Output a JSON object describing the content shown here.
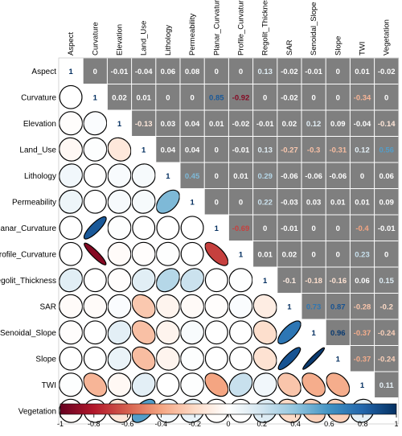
{
  "chart_data": {
    "type": "heatmap",
    "variables": [
      "Aspect",
      "Curvature",
      "Elevation",
      "Land_Use",
      "Lithology",
      "Permeability",
      "Planar_Curvature",
      "Profile_Curvature",
      "Regolit_Thickness",
      "SAR",
      "Senoidal_Slope",
      "Slope",
      "TWI",
      "Vegetation"
    ],
    "value_labels": [
      [
        "1",
        "0",
        "-0.01",
        "-0.04",
        "0.06",
        "0.08",
        "0",
        "0",
        "0.13",
        "-0.02",
        "-0.01",
        "0",
        "0.01",
        "-0.02"
      ],
      [
        "0",
        "1",
        "0.02",
        "0.01",
        "0",
        "0",
        "0.85",
        "-0.92",
        "0",
        "-0.02",
        "0",
        "0",
        "-0.34",
        "0"
      ],
      [
        "-0.01",
        "0.02",
        "1",
        "-0.13",
        "0.03",
        "0.04",
        "0.01",
        "-0.02",
        "-0.01",
        "0.02",
        "0.12",
        "0.09",
        "-0.04",
        "-0.14"
      ],
      [
        "-0.04",
        "0.01",
        "-0.13",
        "1",
        "0.04",
        "0.04",
        "0",
        "-0.01",
        "0.13",
        "-0.27",
        "-0.3",
        "-0.31",
        "0.12",
        "0.56"
      ],
      [
        "0.06",
        "0",
        "0.03",
        "0.04",
        "1",
        "0.45",
        "0",
        "0.01",
        "0.29",
        "-0.06",
        "-0.06",
        "-0.06",
        "0",
        "0.06"
      ],
      [
        "0.08",
        "0",
        "0.04",
        "0.04",
        "0.45",
        "1",
        "0",
        "0",
        "0.22",
        "-0.03",
        "0.03",
        "0.01",
        "0.01",
        "0.09"
      ],
      [
        "0",
        "0.85",
        "0.01",
        "0",
        "0",
        "0",
        "1",
        "-0.69",
        "0",
        "-0.01",
        "0",
        "0",
        "-0.4",
        "-0.01"
      ],
      [
        "0",
        "-0.92",
        "-0.02",
        "-0.01",
        "0.01",
        "0",
        "-0.69",
        "1",
        "0.01",
        "0.02",
        "0",
        "0",
        "0.23",
        "0"
      ],
      [
        "0.13",
        "0",
        "-0.01",
        "0.13",
        "0.29",
        "0.22",
        "0",
        "0.01",
        "1",
        "-0.1",
        "-0.18",
        "-0.16",
        "0.06",
        "0.15"
      ],
      [
        "-0.02",
        "-0.02",
        "0.02",
        "-0.27",
        "-0.06",
        "-0.03",
        "-0.01",
        "0.02",
        "-0.1",
        "1",
        "0.73",
        "0.87",
        "-0.28",
        "-0.2"
      ],
      [
        "-0.01",
        "0",
        "0.12",
        "-0.3",
        "-0.06",
        "0.03",
        "0",
        "0",
        "-0.18",
        "0.73",
        "1",
        "0.96",
        "-0.37",
        "-0.24"
      ],
      [
        "0",
        "0",
        "0.09",
        "-0.31",
        "-0.06",
        "0.01",
        "0",
        "0",
        "-0.16",
        "0.87",
        "0.96",
        "1",
        "-0.37",
        "-0.24"
      ],
      [
        "0.01",
        "-0.34",
        "-0.04",
        "0.12",
        "0",
        "0.01",
        "-0.4",
        "0.23",
        "0.06",
        "-0.28",
        "-0.37",
        "-0.37",
        "1",
        "0.11"
      ],
      [
        "-0.02",
        "0",
        "-0.14",
        "0.56",
        "0.06",
        "0.09",
        "-0.01",
        "0",
        "0.15",
        "-0.2",
        "-0.24",
        "-0.24",
        "0.11",
        "1"
      ]
    ],
    "upper": "number",
    "lower": "ellipse",
    "upper_background": "#7f7f7f",
    "colorbar_ticks": [
      -1,
      -0.8,
      -0.6,
      -0.4,
      -0.2,
      0,
      0.2,
      0.4,
      0.6,
      0.8,
      1
    ],
    "colorbar_tick_labels": [
      "-1",
      "-0.8",
      "-0.6",
      "-0.4",
      "-0.2",
      "0",
      "0.2",
      "0.4",
      "0.6",
      "0.8",
      "1"
    ],
    "colorbar_range": [
      -1,
      1
    ],
    "colorbar_placement": "bottom",
    "colors": {
      "negative": "#67001f",
      "neutral": "#ffffff",
      "positive": "#053061"
    }
  }
}
